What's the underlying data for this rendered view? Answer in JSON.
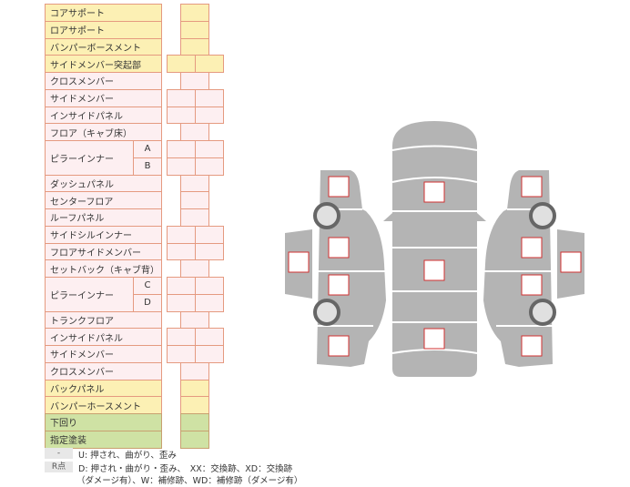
{
  "rows": [
    {
      "label": "コアサポート",
      "color": "yellow",
      "cells": "single"
    },
    {
      "label": "ロアサポート",
      "color": "yellow",
      "cells": "single"
    },
    {
      "label": "バンパーボースメント",
      "color": "yellow",
      "cells": "single"
    },
    {
      "label": "サイドメンバー突起部",
      "color": "yellow",
      "cells": "double"
    },
    {
      "label": "クロスメンバー",
      "color": "pink",
      "cells": "single"
    },
    {
      "label": "サイドメンバー",
      "color": "pink",
      "cells": "double"
    },
    {
      "label": "インサイドパネル",
      "color": "pink",
      "cells": "double"
    },
    {
      "label": "フロア（キャブ床）",
      "color": "pink",
      "cells": "single"
    },
    {
      "label": "ピラーインナー",
      "sub": "A",
      "color": "pink",
      "cells": "double",
      "group_start": true
    },
    {
      "label": "",
      "sub": "B",
      "color": "pink",
      "cells": "double"
    },
    {
      "label": "ダッシュパネル",
      "color": "pink",
      "cells": "single"
    },
    {
      "label": "センターフロア",
      "color": "pink",
      "cells": "single"
    },
    {
      "label": "ルーフパネル",
      "color": "pink",
      "cells": "single"
    },
    {
      "label": "サイドシルインナー",
      "color": "pink",
      "cells": "double"
    },
    {
      "label": "フロアサイドメンバー",
      "color": "pink",
      "cells": "double"
    },
    {
      "label": "セットバック（キャブ背）",
      "color": "pink",
      "cells": "single"
    },
    {
      "label": "ピラーインナー",
      "sub": "C",
      "color": "pink",
      "cells": "double",
      "group_start": true
    },
    {
      "label": "",
      "sub": "D",
      "color": "pink",
      "cells": "double"
    },
    {
      "label": "トランクフロア",
      "color": "pink",
      "cells": "single"
    },
    {
      "label": "インサイドパネル",
      "color": "pink",
      "cells": "double"
    },
    {
      "label": "サイドメンバー",
      "color": "pink",
      "cells": "double"
    },
    {
      "label": "クロスメンバー",
      "color": "pink",
      "cells": "single"
    },
    {
      "label": "バックパネル",
      "color": "yellow",
      "cells": "single"
    },
    {
      "label": "バンパーホースメント",
      "color": "yellow",
      "cells": "single"
    },
    {
      "label": "下回り",
      "color": "green",
      "cells": "single"
    },
    {
      "label": "指定塗装",
      "color": "green",
      "cells": "single"
    }
  ],
  "legend": {
    "dash": "-",
    "dash_text": "U: 押され、曲がり、歪み",
    "r": "R点",
    "r_text_1": "D: 押され・曲がり・歪み、　XX：交換跡、XD：交換跡",
    "r_text_2": "（ダメージ有）、W：補修跡、WD：補修跡（ダメージ有）"
  },
  "colors": {
    "yellow": "#fcf0b4",
    "pink": "#fdeff1",
    "green": "#cfe2a4",
    "border": "#e59a80",
    "car_body": "#b4b4b4",
    "marker": "#d03030"
  }
}
